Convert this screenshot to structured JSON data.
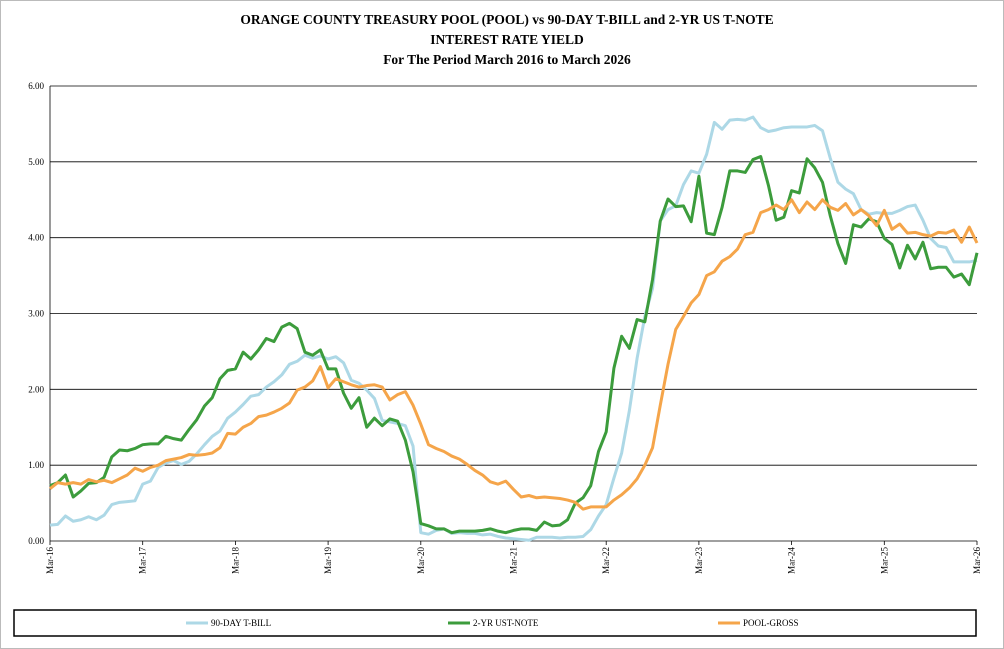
{
  "chart_data": {
    "type": "line",
    "title": [
      "ORANGE COUNTY TREASURY POOL (POOL) vs 90-DAY T-BILL and 2-YR US T-NOTE",
      "INTEREST RATE YIELD",
      "For The Period March 2016 to March 2026"
    ],
    "categories": [
      "Mar-16",
      null,
      null,
      null,
      null,
      null,
      null,
      null,
      null,
      null,
      null,
      null,
      "Mar-17",
      null,
      null,
      null,
      null,
      null,
      null,
      null,
      null,
      null,
      null,
      null,
      "Mar-18",
      null,
      null,
      null,
      null,
      null,
      null,
      null,
      null,
      null,
      null,
      null,
      "Mar-19",
      null,
      null,
      null,
      null,
      null,
      null,
      null,
      null,
      null,
      null,
      null,
      "Mar-20",
      null,
      null,
      null,
      null,
      null,
      null,
      null,
      null,
      null,
      null,
      null,
      "Mar-21",
      null,
      null,
      null,
      null,
      null,
      null,
      null,
      null,
      null,
      null,
      null,
      "Mar-22",
      null,
      null,
      null,
      null,
      null,
      null,
      null,
      null,
      null,
      null,
      null,
      "Mar-23",
      null,
      null,
      null,
      null,
      null,
      null,
      null,
      null,
      null,
      null,
      null,
      "Mar-24",
      null,
      null,
      null,
      null,
      null,
      null,
      null,
      null,
      null,
      null,
      null,
      "Mar-25",
      null,
      null,
      null,
      null,
      null,
      null,
      null,
      null,
      null,
      null,
      null,
      "Mar-26"
    ],
    "series": [
      {
        "name": "90-DAY T-BILL",
        "color": "#add8e6",
        "values": [
          0.21,
          0.22,
          0.33,
          0.26,
          0.28,
          0.32,
          0.28,
          0.34,
          0.48,
          0.51,
          0.52,
          0.53,
          0.75,
          0.79,
          0.97,
          1.03,
          1.06,
          1.01,
          1.05,
          1.15,
          1.27,
          1.38,
          1.45,
          1.62,
          1.7,
          1.8,
          1.91,
          1.93,
          2.03,
          2.1,
          2.19,
          2.33,
          2.37,
          2.45,
          2.41,
          2.44,
          2.4,
          2.43,
          2.35,
          2.12,
          2.08,
          1.99,
          1.88,
          1.59,
          1.57,
          1.55,
          1.52,
          1.25,
          0.11,
          0.09,
          0.14,
          0.16,
          0.1,
          0.11,
          0.1,
          0.1,
          0.08,
          0.09,
          0.06,
          0.04,
          0.03,
          0.02,
          0.01,
          0.05,
          0.05,
          0.05,
          0.04,
          0.05,
          0.05,
          0.06,
          0.15,
          0.33,
          0.48,
          0.83,
          1.16,
          1.72,
          2.41,
          2.96,
          3.33,
          4.22,
          4.37,
          4.42,
          4.7,
          4.88,
          4.85,
          5.1,
          5.52,
          5.43,
          5.55,
          5.56,
          5.55,
          5.59,
          5.45,
          5.4,
          5.42,
          5.45,
          5.46,
          5.46,
          5.46,
          5.48,
          5.41,
          5.05,
          4.73,
          4.64,
          4.58,
          4.37,
          4.31,
          4.33,
          4.32,
          4.32,
          4.36,
          4.41,
          4.43,
          4.23,
          3.99,
          3.89,
          3.87,
          3.68,
          3.68,
          3.68,
          3.7
        ]
      },
      {
        "name": "2-YR UST-NOTE",
        "color": "#3c9c3c",
        "values": [
          0.73,
          0.77,
          0.87,
          0.58,
          0.66,
          0.76,
          0.77,
          0.84,
          1.11,
          1.2,
          1.19,
          1.22,
          1.27,
          1.28,
          1.28,
          1.38,
          1.35,
          1.33,
          1.47,
          1.6,
          1.78,
          1.89,
          2.14,
          2.25,
          2.27,
          2.49,
          2.4,
          2.52,
          2.67,
          2.63,
          2.82,
          2.87,
          2.8,
          2.49,
          2.45,
          2.52,
          2.27,
          2.27,
          1.95,
          1.75,
          1.89,
          1.5,
          1.62,
          1.52,
          1.61,
          1.58,
          1.33,
          0.91,
          0.23,
          0.2,
          0.16,
          0.16,
          0.11,
          0.13,
          0.13,
          0.13,
          0.14,
          0.16,
          0.13,
          0.11,
          0.14,
          0.16,
          0.16,
          0.14,
          0.25,
          0.2,
          0.21,
          0.28,
          0.5,
          0.57,
          0.73,
          1.18,
          1.44,
          2.28,
          2.7,
          2.54,
          2.92,
          2.89,
          3.45,
          4.22,
          4.51,
          4.41,
          4.42,
          4.21,
          4.81,
          4.06,
          4.04,
          4.4,
          4.88,
          4.88,
          4.86,
          5.03,
          5.07,
          4.69,
          4.23,
          4.27,
          4.62,
          4.59,
          5.04,
          4.92,
          4.73,
          4.29,
          3.92,
          3.66,
          4.17,
          4.14,
          4.25,
          4.21,
          3.99,
          3.91,
          3.6,
          3.9,
          3.72,
          3.94,
          3.59,
          3.61,
          3.61,
          3.48,
          3.52,
          3.38,
          3.8
        ]
      },
      {
        "name": "POOL-GROSS",
        "color": "#f5a54a",
        "values": [
          0.69,
          0.77,
          0.75,
          0.77,
          0.75,
          0.81,
          0.78,
          0.8,
          0.77,
          0.82,
          0.87,
          0.96,
          0.92,
          0.97,
          1.0,
          1.06,
          1.08,
          1.1,
          1.14,
          1.13,
          1.14,
          1.16,
          1.23,
          1.42,
          1.41,
          1.5,
          1.55,
          1.64,
          1.66,
          1.7,
          1.75,
          1.82,
          1.99,
          2.03,
          2.11,
          2.3,
          2.02,
          2.14,
          2.1,
          2.06,
          2.03,
          2.05,
          2.06,
          2.03,
          1.86,
          1.93,
          1.97,
          1.79,
          1.54,
          1.27,
          1.22,
          1.18,
          1.12,
          1.08,
          1.01,
          0.93,
          0.87,
          0.78,
          0.75,
          0.79,
          0.68,
          0.58,
          0.6,
          0.57,
          0.58,
          0.57,
          0.56,
          0.54,
          0.51,
          0.42,
          0.45,
          0.45,
          0.45,
          0.54,
          0.61,
          0.7,
          0.82,
          1.0,
          1.23,
          1.79,
          2.33,
          2.79,
          2.96,
          3.14,
          3.25,
          3.5,
          3.55,
          3.69,
          3.75,
          3.85,
          4.04,
          4.07,
          4.33,
          4.37,
          4.43,
          4.37,
          4.5,
          4.33,
          4.47,
          4.37,
          4.5,
          4.4,
          4.36,
          4.45,
          4.3,
          4.37,
          4.29,
          4.16,
          4.36,
          4.11,
          4.18,
          4.06,
          4.07,
          4.04,
          4.02,
          4.07,
          4.06,
          4.1,
          3.94,
          4.14,
          3.93
        ]
      }
    ],
    "ylim": [
      0,
      6
    ],
    "yticks": [
      {
        "value": 0,
        "label": "0.00"
      },
      {
        "value": 1,
        "label": "1.00"
      },
      {
        "value": 2,
        "label": "2.00"
      },
      {
        "value": 3,
        "label": "3.00"
      },
      {
        "value": 4,
        "label": "4.00"
      },
      {
        "value": 5,
        "label": "5.00"
      },
      {
        "value": 6,
        "label": "6.00"
      }
    ],
    "grid": true,
    "legend": "bottom"
  }
}
